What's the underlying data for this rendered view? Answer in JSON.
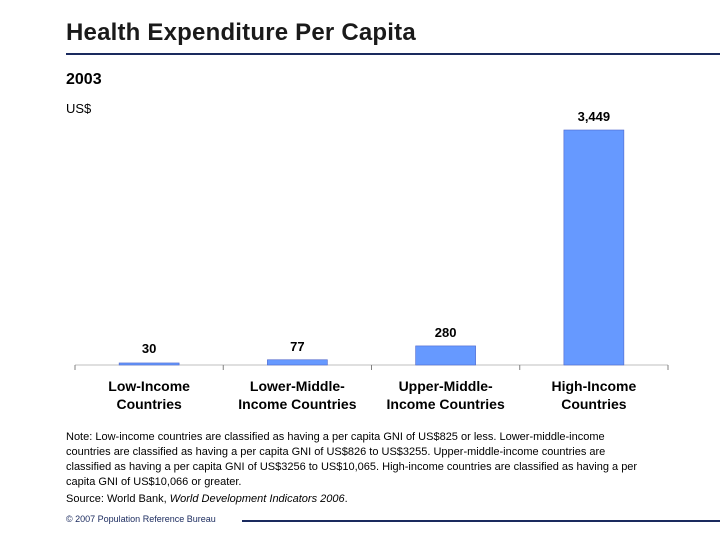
{
  "title": "Health Expenditure Per Capita",
  "subtitle": "2003",
  "unit_label": "US$",
  "chart_data": {
    "type": "bar",
    "categories": [
      [
        "Low-Income",
        "Countries"
      ],
      [
        "Lower-Middle-",
        "Income Countries"
      ],
      [
        "Upper-Middle-",
        "Income Countries"
      ],
      [
        "High-Income",
        "Countries"
      ]
    ],
    "values": [
      30,
      77,
      280,
      3449
    ],
    "data_labels": [
      "30",
      "77",
      "280",
      "3,449"
    ],
    "bar_color": "#6699ff",
    "ylim": [
      0,
      3449
    ]
  },
  "note": "Note: Low-income countries are classified as having a per capita GNI of US$825 or less. Lower-middle-income countries are classified as having a per capita GNI of US$826 to US$3255. Upper-middle-income countries are classified as having a per capita GNI of US$3256 to US$10,065. High-income countries are classified as having a per capita GNI of US$10,066 or greater.",
  "source": {
    "prefix": "Source: World Bank, ",
    "publication": "World Development Indicators 2006",
    "suffix": "."
  },
  "footer": "© 2007 Population Reference Bureau"
}
